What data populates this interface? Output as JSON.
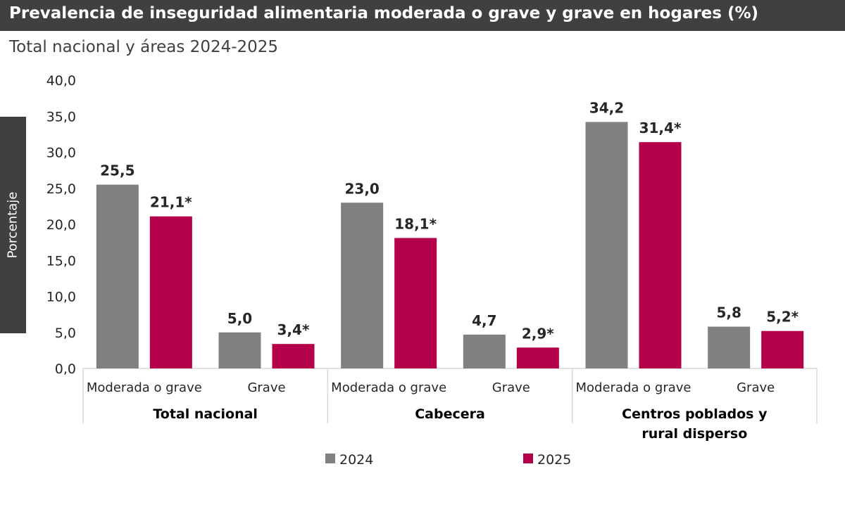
{
  "title": "Prevalencia de inseguridad alimentaria moderada o grave y grave en hogares (%)",
  "subtitle": "Total nacional y áreas 2024-2025",
  "chart_data": {
    "type": "bar",
    "ylabel": "Porcentaje",
    "ylim": [
      0,
      40
    ],
    "yticks": [
      "0,0",
      "5,0",
      "10,0",
      "15,0",
      "20,0",
      "25,0",
      "30,0",
      "35,0",
      "40,0"
    ],
    "grid": false,
    "legend_position": "bottom",
    "groups": [
      {
        "name": "Total nacional",
        "categories": [
          "Moderada o grave",
          "Grave"
        ]
      },
      {
        "name": "Cabecera",
        "categories": [
          "Moderada o grave",
          "Grave"
        ]
      },
      {
        "name": "Centros poblados y rural disperso",
        "categories": [
          "Moderada o grave",
          "Grave"
        ]
      }
    ],
    "series": [
      {
        "name": "2024",
        "color": "#808080",
        "values": [
          25.5,
          5.0,
          23.0,
          4.7,
          34.2,
          5.8
        ],
        "labels": [
          "25,5",
          "5,0",
          "23,0",
          "4,7",
          "34,2",
          "5,8"
        ]
      },
      {
        "name": "2025",
        "color": "#B5004B",
        "values": [
          21.1,
          3.4,
          18.1,
          2.9,
          31.4,
          5.2
        ],
        "labels": [
          "21,1*",
          "3,4*",
          "18,1*",
          "2,9*",
          "31,4*",
          "5,2*"
        ]
      }
    ]
  }
}
